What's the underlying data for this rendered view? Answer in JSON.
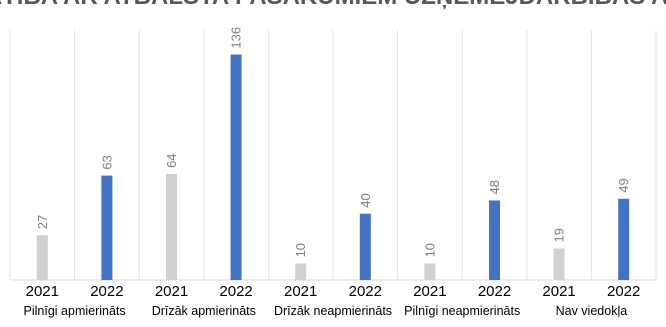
{
  "chart_data": {
    "type": "bar",
    "title": "VISPĀRĒJĀ APMIERINĀTĪBA AR ATBALSTA PASĀKUMIEM UZŅĒMĒJDARBĪBAS ATTĪSTĪBAI PAŠVALDĪBĀ",
    "groups": [
      {
        "label": "Pilnīgi apmierināts",
        "years": [
          "2021",
          "2022"
        ],
        "values": [
          27,
          63
        ]
      },
      {
        "label": "Drīzāk apmierināts",
        "years": [
          "2021",
          "2022"
        ],
        "values": [
          64,
          136
        ]
      },
      {
        "label": "Drīzāk neapmierināts",
        "years": [
          "2021",
          "2022"
        ],
        "values": [
          10,
          40
        ]
      },
      {
        "label": "Pilnīgi neapmierināts",
        "years": [
          "2021",
          "2022"
        ],
        "values": [
          10,
          48
        ]
      },
      {
        "label": "Nav viedokļa",
        "years": [
          "2021",
          "2022"
        ],
        "values": [
          19,
          49
        ]
      }
    ],
    "series_colors": {
      "2021": "#d0d0d0",
      "2022": "#4472c4"
    },
    "ylim": [
      0,
      146
    ],
    "grid": "vertical category separators",
    "data_labels": "rotated above bars"
  }
}
